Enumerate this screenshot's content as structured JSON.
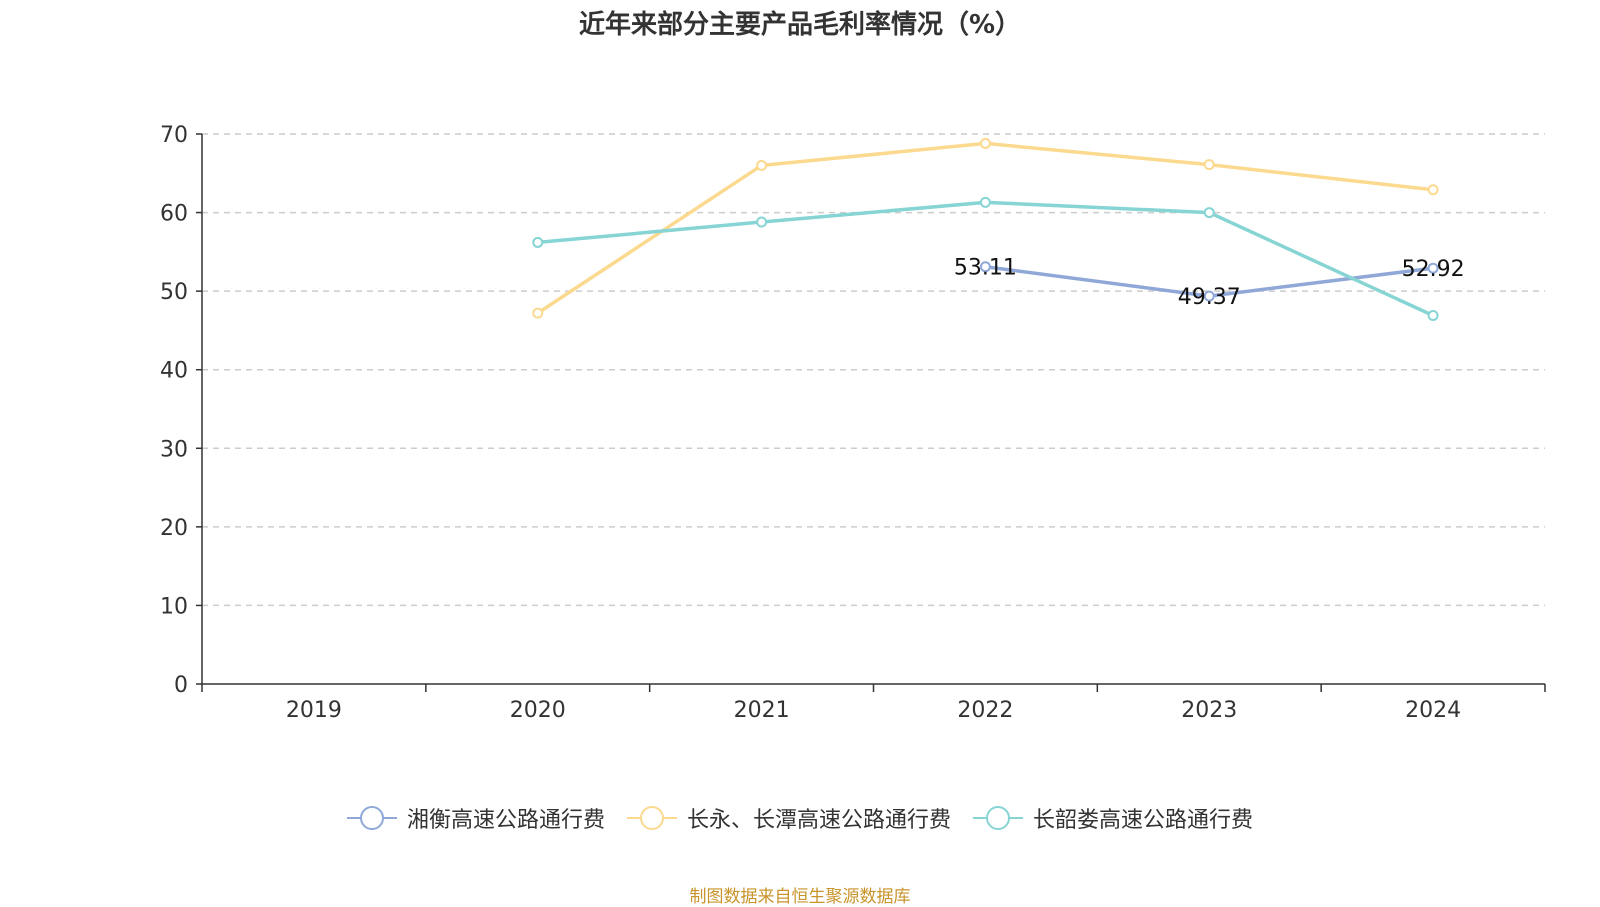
{
  "title": "近年来部分主要产品毛利率情况（%）",
  "source_note": "制图数据来自恒生聚源数据库",
  "chart_data": {
    "type": "line",
    "title": "近年来部分主要产品毛利率情况（%）",
    "categories": [
      "2019",
      "2020",
      "2021",
      "2022",
      "2023",
      "2024"
    ],
    "ylim": [
      0,
      70
    ],
    "yticks": [
      0,
      10,
      20,
      30,
      40,
      50,
      60,
      70
    ],
    "grid": true,
    "legend_position": "bottom",
    "series": [
      {
        "name": "湘衡高速公路通行费",
        "color": "#8fa8d8",
        "values": [
          null,
          null,
          null,
          53.11,
          49.37,
          52.92
        ],
        "labels": [
          null,
          null,
          null,
          "53.11",
          "49.37",
          "52.92"
        ]
      },
      {
        "name": "长永、长潭高速公路通行费",
        "color": "#fbd98e",
        "values": [
          null,
          47.2,
          66.0,
          68.8,
          66.1,
          62.9
        ],
        "labels": [
          null,
          null,
          null,
          null,
          null,
          null
        ]
      },
      {
        "name": "长韶娄高速公路通行费",
        "color": "#86d4d4",
        "values": [
          null,
          56.2,
          58.8,
          61.3,
          60.0,
          46.9
        ],
        "labels": [
          null,
          null,
          null,
          null,
          null,
          null
        ]
      }
    ]
  }
}
